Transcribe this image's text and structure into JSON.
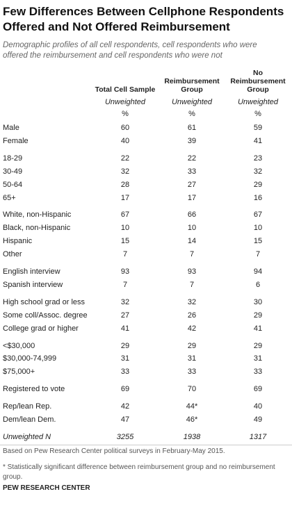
{
  "header": {
    "title": [
      "Few Differences Between Cellphone Respondents",
      "Offered and Not Offered Reimbursement"
    ],
    "subtitle": [
      "Demographic profiles of all cell respondents, cell respondents who were",
      "offered the reimbursement and cell respondents who were not"
    ]
  },
  "table": {
    "column_headers": [
      [
        "Total Cell Sample"
      ],
      [
        "Reimbursement",
        "Group"
      ],
      [
        "No",
        "Reimbursement",
        "Group"
      ]
    ],
    "subheaders": [
      "Unweighted",
      "Unweighted",
      "Unweighted"
    ],
    "units": [
      "%",
      "%",
      "%"
    ],
    "groups": [
      [
        [
          "Male",
          60,
          61,
          59
        ],
        [
          "Female",
          40,
          39,
          41
        ]
      ],
      [
        [
          "18-29",
          22,
          22,
          23
        ],
        [
          "30-49",
          32,
          33,
          32
        ],
        [
          "50-64",
          28,
          27,
          29
        ],
        [
          "65+",
          17,
          17,
          16
        ]
      ],
      [
        [
          "White, non-Hispanic",
          67,
          66,
          67
        ],
        [
          "Black, non-Hispanic",
          10,
          10,
          10
        ],
        [
          "Hispanic",
          15,
          14,
          15
        ],
        [
          "Other",
          7,
          7,
          7
        ]
      ],
      [
        [
          "English interview",
          93,
          93,
          94
        ],
        [
          "Spanish interview",
          7,
          7,
          6
        ]
      ],
      [
        [
          "High school grad or less",
          32,
          32,
          30
        ],
        [
          "Some coll/Assoc. degree",
          27,
          26,
          29
        ],
        [
          "College grad or higher",
          41,
          42,
          41
        ]
      ],
      [
        [
          "<$30,000",
          29,
          29,
          29
        ],
        [
          "$30,000-74,999",
          31,
          31,
          31
        ],
        [
          "$75,000+",
          33,
          33,
          33
        ]
      ],
      [
        [
          "Registered to vote",
          69,
          70,
          69
        ]
      ],
      [
        [
          "Rep/lean Rep.",
          42,
          "44*",
          40
        ],
        [
          "Dem/lean Dem.",
          47,
          "46*",
          49
        ]
      ]
    ],
    "unweighted_n": [
      "Unweighted N",
      3255,
      1938,
      1317
    ]
  },
  "notes": [
    "Based on Pew Research Center political surveys in February-May 2015.",
    "* Statistically significant difference between reimbursement group and no reimbursement group."
  ],
  "footer": "PEW RESEARCH CENTER"
}
